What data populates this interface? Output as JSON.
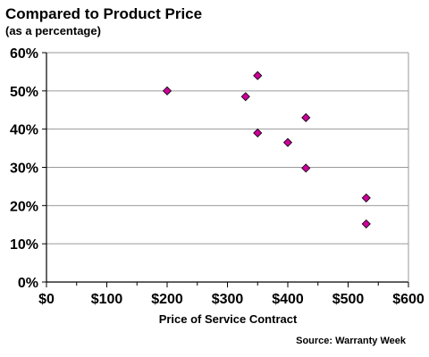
{
  "colors": {
    "point_fill": "#cc0099",
    "point_stroke": "#000000",
    "gridline": "#9a9a9a",
    "axis": "#000000",
    "plot_background": "#ffffff"
  },
  "chart_data": {
    "type": "scatter",
    "title": "Compared to Product Price",
    "subtitle": "(as a percentage)",
    "xlabel": "Price of Service Contract",
    "ylabel": "",
    "source": "Source: Warranty Week",
    "xlim": [
      0,
      600
    ],
    "ylim": [
      0,
      60
    ],
    "x_ticks": [
      0,
      100,
      200,
      300,
      400,
      500,
      600
    ],
    "y_ticks": [
      0,
      10,
      20,
      30,
      40,
      50,
      60
    ],
    "x_tick_labels": [
      "$0",
      "$100",
      "$200",
      "$300",
      "$400",
      "$500",
      "$600"
    ],
    "y_tick_labels": [
      "0%",
      "10%",
      "20%",
      "30%",
      "40%",
      "50%",
      "60%"
    ],
    "grid": {
      "horizontal": true,
      "vertical": false
    },
    "legend": "none",
    "marker": "diamond",
    "points": [
      {
        "x": 200,
        "y": 50
      },
      {
        "x": 330,
        "y": 48.5
      },
      {
        "x": 350,
        "y": 54
      },
      {
        "x": 350,
        "y": 39
      },
      {
        "x": 400,
        "y": 36.5
      },
      {
        "x": 430,
        "y": 43
      },
      {
        "x": 430,
        "y": 29.8
      },
      {
        "x": 530,
        "y": 22
      },
      {
        "x": 530,
        "y": 15.2
      }
    ]
  }
}
